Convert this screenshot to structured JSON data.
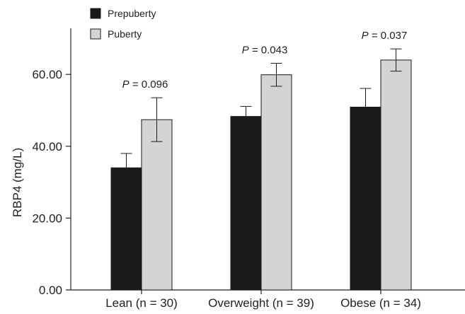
{
  "chart_data": {
    "type": "bar",
    "title": "",
    "xlabel": "",
    "ylabel": "RBP4 (mg/L)",
    "ylim": [
      0,
      70
    ],
    "yticks": [
      "0.00",
      "20.00",
      "40.00",
      "60.00"
    ],
    "ytick_values": [
      0,
      20,
      40,
      60
    ],
    "categories": [
      "Lean (n = 30)",
      "Overweight (n = 39)",
      "Obese (n = 34)"
    ],
    "series": [
      {
        "name": "Prepuberty",
        "values": [
          34.0,
          48.3,
          50.9
        ],
        "errors": [
          4.0,
          2.8,
          5.2
        ],
        "color": "#1a1a1a"
      },
      {
        "name": "Puberty",
        "values": [
          47.4,
          59.9,
          64.0
        ],
        "errors": [
          6.1,
          3.2,
          3.1
        ],
        "color": "#d4d4d4"
      }
    ],
    "annotations": [
      {
        "p_label": "P",
        "p_rest": " = 0.096"
      },
      {
        "p_label": "P",
        "p_rest": " = 0.043"
      },
      {
        "p_label": "P",
        "p_rest": " = 0.037"
      }
    ],
    "legend": {
      "position": "top-left",
      "entries": [
        "Prepuberty",
        "Puberty"
      ]
    },
    "grid": false
  }
}
